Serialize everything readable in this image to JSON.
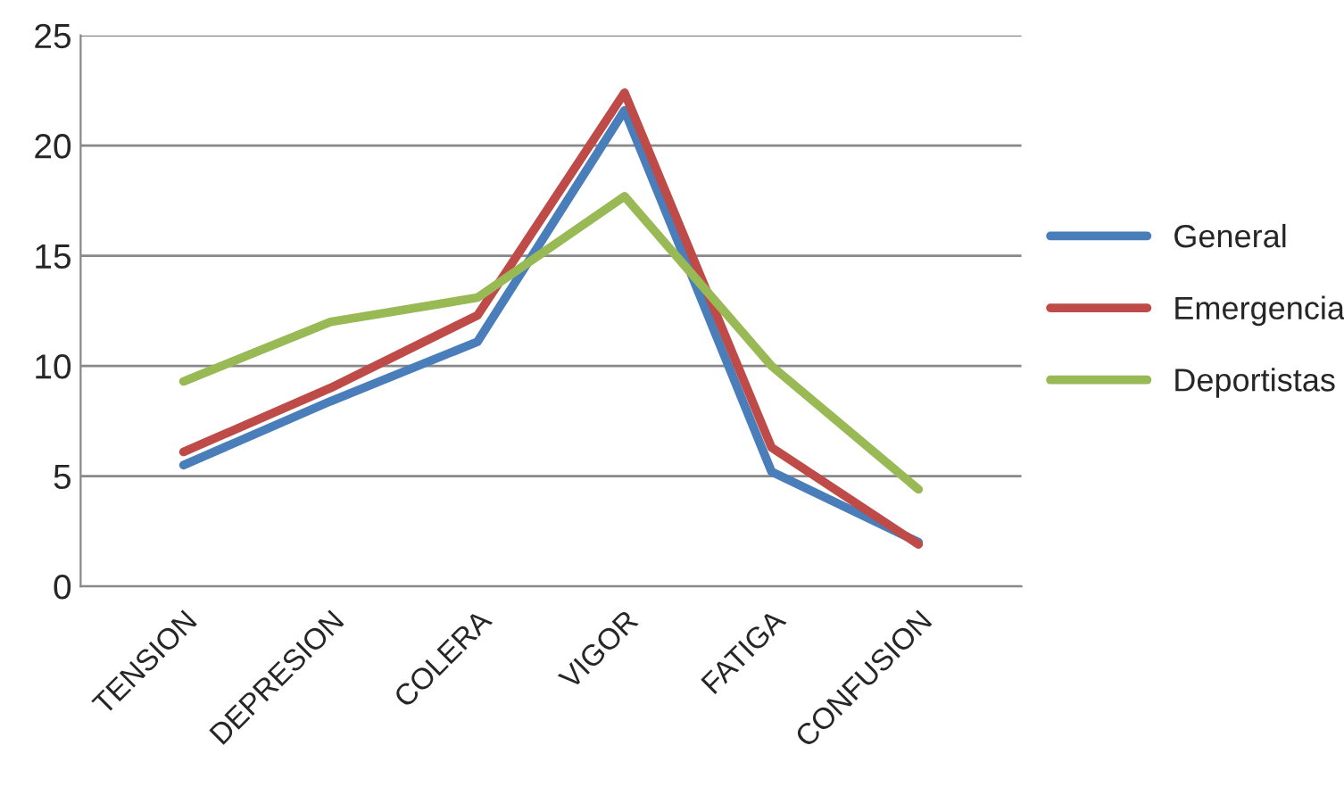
{
  "chart_data": {
    "type": "line",
    "categories": [
      "TENSION",
      "DEPRESION",
      "COLERA",
      "VIGOR",
      "FATIGA",
      "CONFUSION"
    ],
    "series": [
      {
        "name": "General",
        "color": "#4a7ebb",
        "values": [
          5.5,
          8.4,
          11.1,
          21.6,
          5.2,
          2.0
        ]
      },
      {
        "name": "Emergencia",
        "color": "#be4b48",
        "values": [
          6.1,
          9.0,
          12.3,
          22.4,
          6.3,
          1.9
        ]
      },
      {
        "name": "Deportistas",
        "color": "#98b954",
        "values": [
          9.3,
          12.0,
          13.1,
          17.7,
          10.0,
          4.4
        ]
      }
    ],
    "ylim": [
      0,
      25
    ],
    "yticks": [
      0,
      5,
      10,
      15,
      20,
      25
    ],
    "grid": "y",
    "legend": "right",
    "marker": "none",
    "line_style": "solid"
  }
}
